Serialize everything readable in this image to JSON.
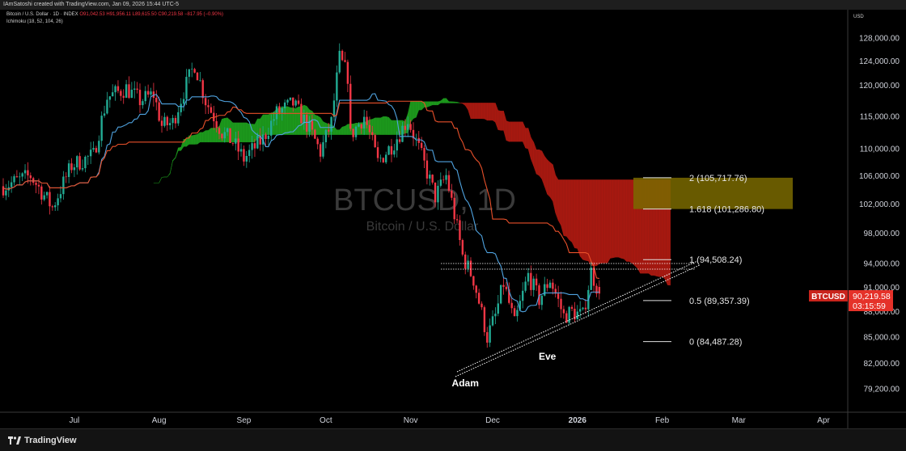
{
  "header": {
    "attribution": "IAmSatoshi created with TradingView.com, Jan 09, 2026 15:44 UTC-5"
  },
  "legend": {
    "symbol_line": "Bitcoin / U.S. Dollar · 1D · INDEX",
    "ohlc": "O91,042.53  H91,956.11  L89,615.50  C90,219.58  −817.95 (−0.90%)",
    "indicator": "Ichimoku (18, 52, 104, 26)"
  },
  "watermark": {
    "title": "BTCUSD, 1D",
    "subtitle": "Bitcoin / U.S. Dollar"
  },
  "footer": {
    "brand": "TradingView"
  },
  "colors": {
    "up": "#22ab94",
    "down": "#f23645",
    "tenkan": "#4fa3e0",
    "kijun": "#e8502a",
    "cloud_up": "#1fa31f",
    "cloud_down": "#b31b12",
    "fib_box": "#7a6a00"
  },
  "chart_data": {
    "type": "candlestick",
    "symbol": "BTCUSD",
    "timeframe": "1D",
    "currency": "USD",
    "y_scale": "log",
    "ylim": [
      79200,
      128000
    ],
    "y_ticks": [
      "128,000.00",
      "124,000.00",
      "120,000.00",
      "115,000.00",
      "110,000.00",
      "106,000.00",
      "102,000.00",
      "98,000.00",
      "94,000.00",
      "91,000.00",
      "88,000.00",
      "85,000.00",
      "82,000.00",
      "79,200.00"
    ],
    "y_tick_values": [
      128000,
      124000,
      120000,
      115000,
      110000,
      106000,
      102000,
      98000,
      94000,
      91000,
      88000,
      85000,
      82000,
      79200
    ],
    "x_ticks": [
      {
        "label": "Jul",
        "date": "2025-07-01"
      },
      {
        "label": "Aug",
        "date": "2025-08-01"
      },
      {
        "label": "Sep",
        "date": "2025-09-01"
      },
      {
        "label": "Oct",
        "date": "2025-10-01"
      },
      {
        "label": "Nov",
        "date": "2025-11-01"
      },
      {
        "label": "Dec",
        "date": "2025-12-01"
      },
      {
        "label": "2026",
        "date": "2026-01-01"
      },
      {
        "label": "Feb",
        "date": "2026-02-01"
      },
      {
        "label": "Mar",
        "date": "2026-03-01"
      },
      {
        "label": "Apr",
        "date": "2026-04-01"
      }
    ],
    "close_keypoints": [
      [
        "2025-06-05",
        104500
      ],
      [
        "2025-06-15",
        106000
      ],
      [
        "2025-06-23",
        101500
      ],
      [
        "2025-06-30",
        107500
      ],
      [
        "2025-07-08",
        109000
      ],
      [
        "2025-07-13",
        118000
      ],
      [
        "2025-07-20",
        119500
      ],
      [
        "2025-07-25",
        117500
      ],
      [
        "2025-07-30",
        118500
      ],
      [
        "2025-08-02",
        113500
      ],
      [
        "2025-08-06",
        114000
      ],
      [
        "2025-08-10",
        119000
      ],
      [
        "2025-08-14",
        123500
      ],
      [
        "2025-08-18",
        117500
      ],
      [
        "2025-08-24",
        112500
      ],
      [
        "2025-08-28",
        111000
      ],
      [
        "2025-09-01",
        108500
      ],
      [
        "2025-09-08",
        111500
      ],
      [
        "2025-09-13",
        115500
      ],
      [
        "2025-09-19",
        117000
      ],
      [
        "2025-09-25",
        113000
      ],
      [
        "2025-09-29",
        109500
      ],
      [
        "2025-10-03",
        114000
      ],
      [
        "2025-10-06",
        124500
      ],
      [
        "2025-10-09",
        121500
      ],
      [
        "2025-10-10",
        112000
      ],
      [
        "2025-10-15",
        115000
      ],
      [
        "2025-10-20",
        108000
      ],
      [
        "2025-10-26",
        111000
      ],
      [
        "2025-10-31",
        114500
      ],
      [
        "2025-11-04",
        110000
      ],
      [
        "2025-11-10",
        103000
      ],
      [
        "2025-11-14",
        106000
      ],
      [
        "2025-11-20",
        95000
      ],
      [
        "2025-11-24",
        92000
      ],
      [
        "2025-11-29",
        85000
      ],
      [
        "2025-12-02",
        87500
      ],
      [
        "2025-12-05",
        91500
      ],
      [
        "2025-12-09",
        86500
      ],
      [
        "2025-12-14",
        92500
      ],
      [
        "2025-12-18",
        89500
      ],
      [
        "2025-12-22",
        92000
      ],
      [
        "2025-12-27",
        87500
      ],
      [
        "2025-12-30",
        88000
      ],
      [
        "2026-01-03",
        87500
      ],
      [
        "2026-01-06",
        93000
      ],
      [
        "2026-01-09",
        90219.58
      ]
    ],
    "last_price": {
      "label": "BTCUSD",
      "price": "90,219.58",
      "countdown": "03:15:59"
    },
    "fib_levels": [
      {
        "ratio": "2",
        "price": 105717.76,
        "label": "2 (105,717.76)"
      },
      {
        "ratio": "1.618",
        "price": 101286.8,
        "label": "1.618 (101,286.80)"
      },
      {
        "ratio": "1",
        "price": 94508.24,
        "label": "1 (94,508.24)"
      },
      {
        "ratio": "0.5",
        "price": 89357.39,
        "label": "0.5 (89,357.39)"
      },
      {
        "ratio": "0",
        "price": 84487.28,
        "label": "0 (84,487.28)"
      }
    ],
    "annotations": [
      {
        "text": "Adam",
        "date": "2025-11-21",
        "price": 79800
      },
      {
        "text": "Eve",
        "date": "2025-12-21",
        "price": 82800
      }
    ],
    "grid": false
  }
}
